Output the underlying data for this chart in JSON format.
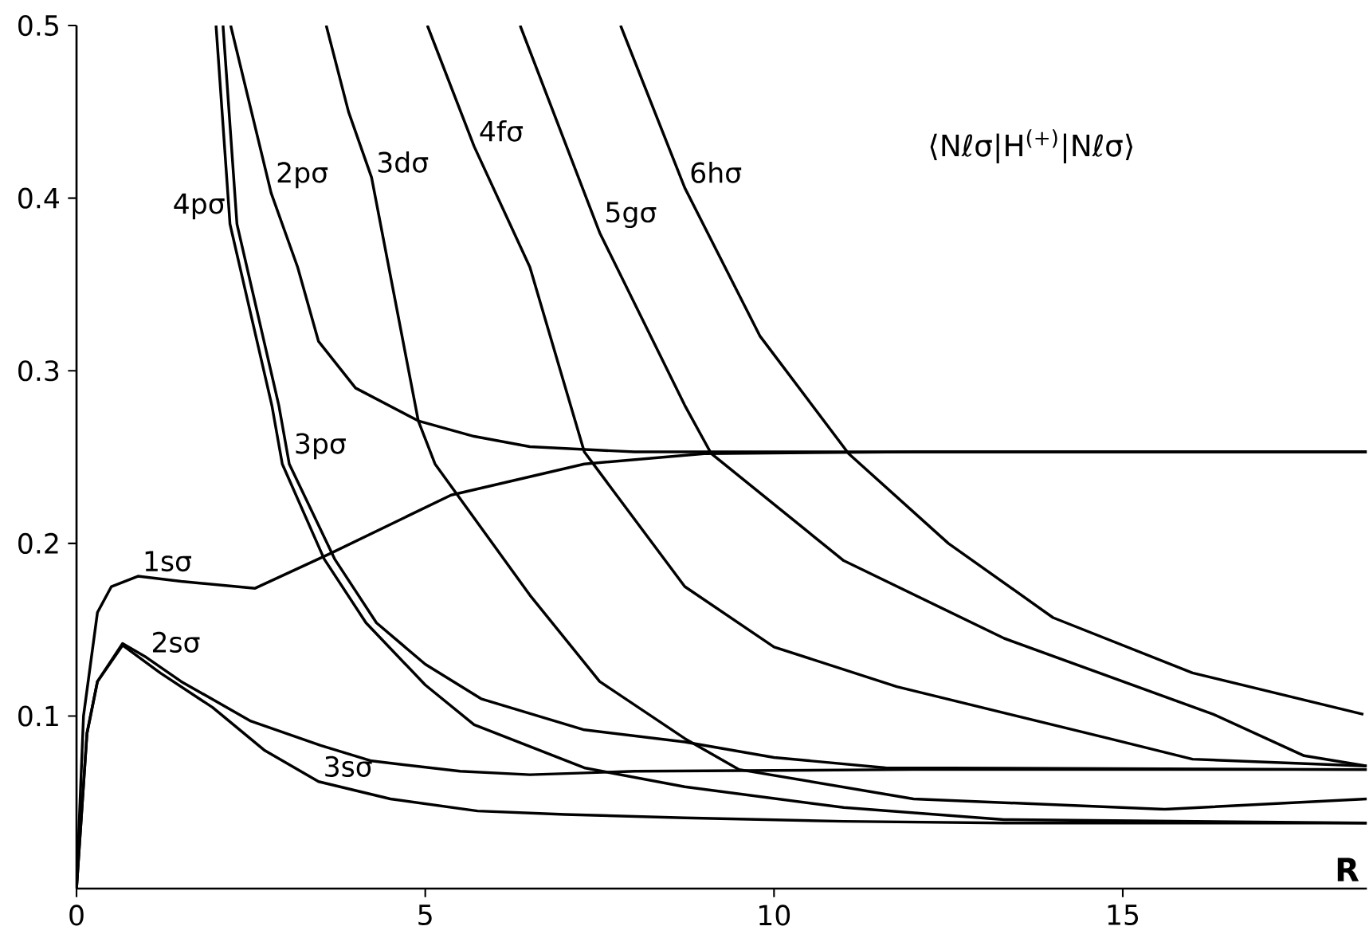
{
  "chart_data": {
    "type": "line",
    "xlabel": "R",
    "xlim": [
      0,
      18.5
    ],
    "ylim": [
      0,
      0.5
    ],
    "xticks": [
      0,
      5,
      10,
      15
    ],
    "yticks": [
      0.1,
      0.2,
      0.3,
      0.4,
      0.5
    ],
    "grid": false,
    "series": [
      {
        "color": "#000000",
        "x": [
          0,
          0.1,
          0.3,
          0.5,
          0.88,
          1.5,
          2.56,
          3.63,
          5.37,
          7.28,
          9,
          12,
          18.5
        ],
        "values": [
          0,
          0.1,
          0.16,
          0.175,
          0.181,
          0.178,
          0.174,
          0.194,
          0.228,
          0.246,
          0.252,
          0.253,
          0.253
        ]
      },
      {
        "color": "#000000",
        "x": [
          0,
          0.15,
          0.3,
          0.66,
          1.0,
          1.5,
          2.5,
          3.5,
          4.23,
          5.5,
          6.5,
          8,
          12,
          18.5
        ],
        "values": [
          0,
          0.09,
          0.12,
          0.142,
          0.134,
          0.12,
          0.097,
          0.083,
          0.074,
          0.068,
          0.066,
          0.068,
          0.069,
          0.069
        ]
      },
      {
        "color": "#000000",
        "x": [
          0,
          0.15,
          0.3,
          0.66,
          1.2,
          1.95,
          2.7,
          3.47,
          4.5,
          5.75,
          7,
          8.72,
          11,
          13.3,
          18.5
        ],
        "values": [
          0,
          0.09,
          0.12,
          0.141,
          0.125,
          0.105,
          0.08,
          0.062,
          0.052,
          0.045,
          0.043,
          0.041,
          0.039,
          0.038,
          0.038
        ]
      },
      {
        "color": "#000000",
        "x": [
          2.21,
          2.79,
          3.17,
          3.47,
          4.0,
          4.9,
          5.7,
          6.5,
          8,
          12,
          18.5
        ],
        "values": [
          0.5,
          0.403,
          0.36,
          0.317,
          0.29,
          0.271,
          0.262,
          0.256,
          0.253,
          0.253,
          0.253
        ]
      },
      {
        "color": "#000000",
        "x": [
          2.1,
          2.3,
          2.9,
          3.05,
          3.7,
          4.3,
          5.0,
          5.8,
          7.28,
          8.72,
          10,
          11.6,
          18.5
        ],
        "values": [
          0.5,
          0.385,
          0.28,
          0.246,
          0.191,
          0.154,
          0.13,
          0.11,
          0.092,
          0.085,
          0.076,
          0.07,
          0.069
        ]
      },
      {
        "color": "#000000",
        "x": [
          2.0,
          2.2,
          2.8,
          2.95,
          3.55,
          4.15,
          5.0,
          5.7,
          7.28,
          8.72,
          11,
          13.3,
          18.5
        ],
        "values": [
          0.5,
          0.385,
          0.28,
          0.246,
          0.191,
          0.154,
          0.118,
          0.095,
          0.07,
          0.059,
          0.047,
          0.04,
          0.038
        ]
      },
      {
        "color": "#000000",
        "x": [
          3.58,
          3.9,
          4.23,
          4.9,
          5.14,
          6.5,
          7.5,
          8.72,
          9.5,
          12,
          15.6,
          18.5
        ],
        "values": [
          0.5,
          0.45,
          0.412,
          0.271,
          0.246,
          0.17,
          0.12,
          0.087,
          0.069,
          0.052,
          0.046,
          0.052
        ]
      },
      {
        "color": "#000000",
        "x": [
          5.03,
          5.7,
          6.5,
          7.28,
          8.72,
          10,
          11.76,
          14.8,
          16,
          18.5
        ],
        "values": [
          0.5,
          0.43,
          0.36,
          0.253,
          0.175,
          0.14,
          0.117,
          0.087,
          0.075,
          0.071
        ]
      },
      {
        "color": "#000000",
        "x": [
          6.36,
          7.5,
          8.72,
          9.1,
          11,
          13.3,
          16.3,
          17.6,
          18.5
        ],
        "values": [
          0.5,
          0.38,
          0.28,
          0.252,
          0.19,
          0.145,
          0.101,
          0.077,
          0.071
        ]
      },
      {
        "color": "#000000",
        "x": [
          7.8,
          8.72,
          9.8,
          11.07,
          12.5,
          14,
          16,
          18.45
        ],
        "values": [
          0.5,
          0.406,
          0.32,
          0.252,
          0.2,
          0.157,
          0.125,
          0.101
        ]
      }
    ],
    "annotations": [
      {
        "text": "1sσ",
        "x": 0.88,
        "y": 0.181
      },
      {
        "text": "2sσ",
        "x": 1.0,
        "y": 0.134
      },
      {
        "text": "3sσ",
        "x": 3.47,
        "y": 0.062
      },
      {
        "text": "2pσ",
        "x": 2.79,
        "y": 0.403
      },
      {
        "text": "3pσ",
        "x": 3.05,
        "y": 0.246
      },
      {
        "text": "4pσ",
        "x": 2.2,
        "y": 0.385
      },
      {
        "text": "3dσ",
        "x": 4.23,
        "y": 0.412
      },
      {
        "text": "4fσ",
        "x": 5.7,
        "y": 0.43
      },
      {
        "text": "5gσ",
        "x": 7.5,
        "y": 0.38
      },
      {
        "text": "6hσ",
        "x": 8.72,
        "y": 0.406
      },
      "⟨Nℓσ|H$^{(+)}$|Nℓσ⟩"
    ]
  }
}
